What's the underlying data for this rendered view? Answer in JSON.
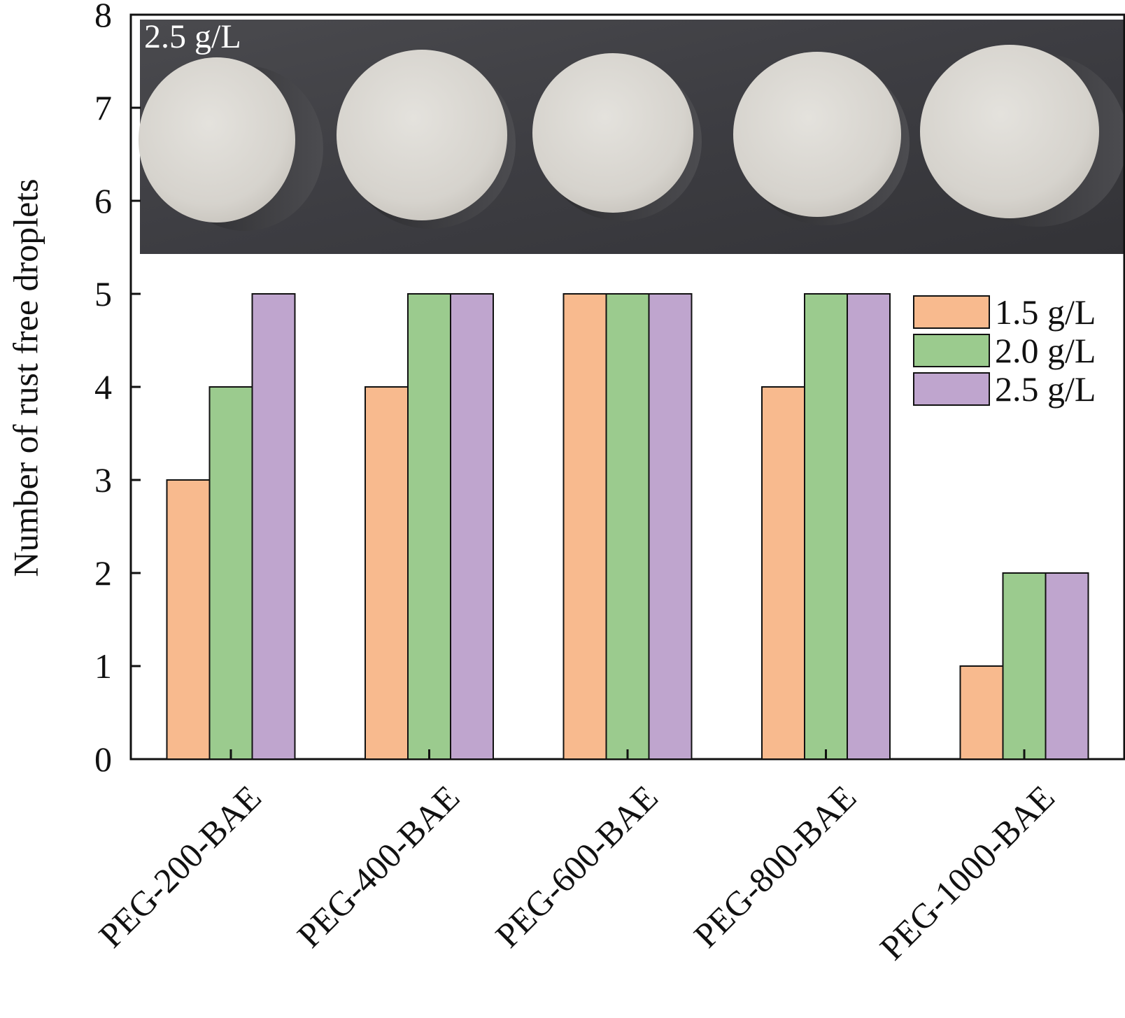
{
  "chart_data": {
    "type": "bar",
    "ylabel": "Number of rust free droplets",
    "ylim": [
      0,
      8
    ],
    "yticks": [
      0,
      1,
      2,
      3,
      4,
      5,
      6,
      7,
      8
    ],
    "categories": [
      "PEG-200-BAE",
      "PEG-400-BAE",
      "PEG-600-BAE",
      "PEG-800-BAE",
      "PEG-1000-BAE"
    ],
    "series": [
      {
        "name": "1.5 g/L",
        "color": "#F8BA8E",
        "values": [
          3,
          4,
          5,
          4,
          1
        ]
      },
      {
        "name": "2.0 g/L",
        "color": "#9BCB8E",
        "values": [
          4,
          5,
          5,
          5,
          2
        ]
      },
      {
        "name": "2.5 g/L",
        "color": "#BFA5CE",
        "values": [
          5,
          5,
          5,
          5,
          2
        ]
      }
    ],
    "legend_position": "right",
    "grid": false
  },
  "inset_photo": {
    "label": "2.5 g/L",
    "description_items": 5
  }
}
